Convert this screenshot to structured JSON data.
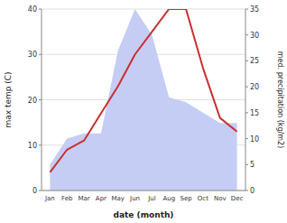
{
  "chart_data": {
    "type": "line",
    "xlabel": "date (month)",
    "ylabel": "max temp (C)",
    "y2label": "med. precipitation (kg/m2)",
    "categories": [
      "Jan",
      "Feb",
      "Mar",
      "Apr",
      "May",
      "Jun",
      "Jul",
      "Aug",
      "Sep",
      "Oct",
      "Nov",
      "Dec"
    ],
    "series": [
      {
        "type": "area",
        "axis": "y2",
        "color": "#c5cdf5",
        "values": [
          5,
          10,
          11,
          11,
          27,
          35,
          30,
          18,
          17,
          15,
          13,
          13
        ]
      },
      {
        "type": "line",
        "color": "#c83030",
        "values": [
          4,
          9,
          11,
          17,
          23,
          30,
          35,
          40,
          40,
          27,
          16,
          13
        ]
      }
    ],
    "ylim": [
      0,
      40
    ],
    "yticks": [
      0,
      10,
      20,
      30,
      40
    ],
    "y2lim": [
      0,
      35
    ],
    "y2ticks": [
      0,
      5,
      10,
      15,
      20,
      25,
      30,
      35
    ],
    "grid": true
  }
}
